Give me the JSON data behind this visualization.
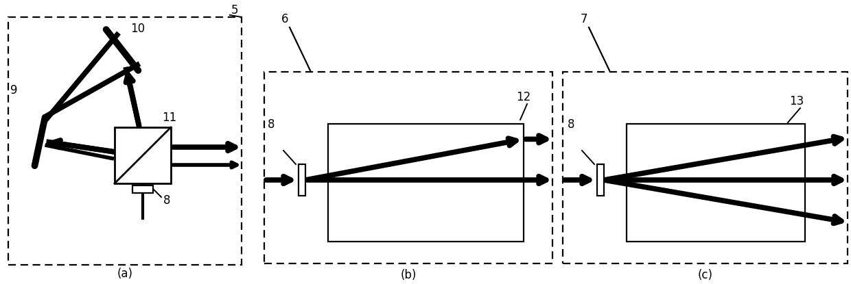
{
  "bg_color": "#ffffff",
  "fig_w": 12.4,
  "fig_h": 4.15,
  "dpi": 100,
  "caption_a": "(a)",
  "caption_b": "(b)",
  "caption_c": "(c)",
  "lw_thick": 5.5,
  "lw_medium": 4.0,
  "lw_thin": 1.6,
  "lw_mirror": 5.5,
  "fontsize": 12
}
